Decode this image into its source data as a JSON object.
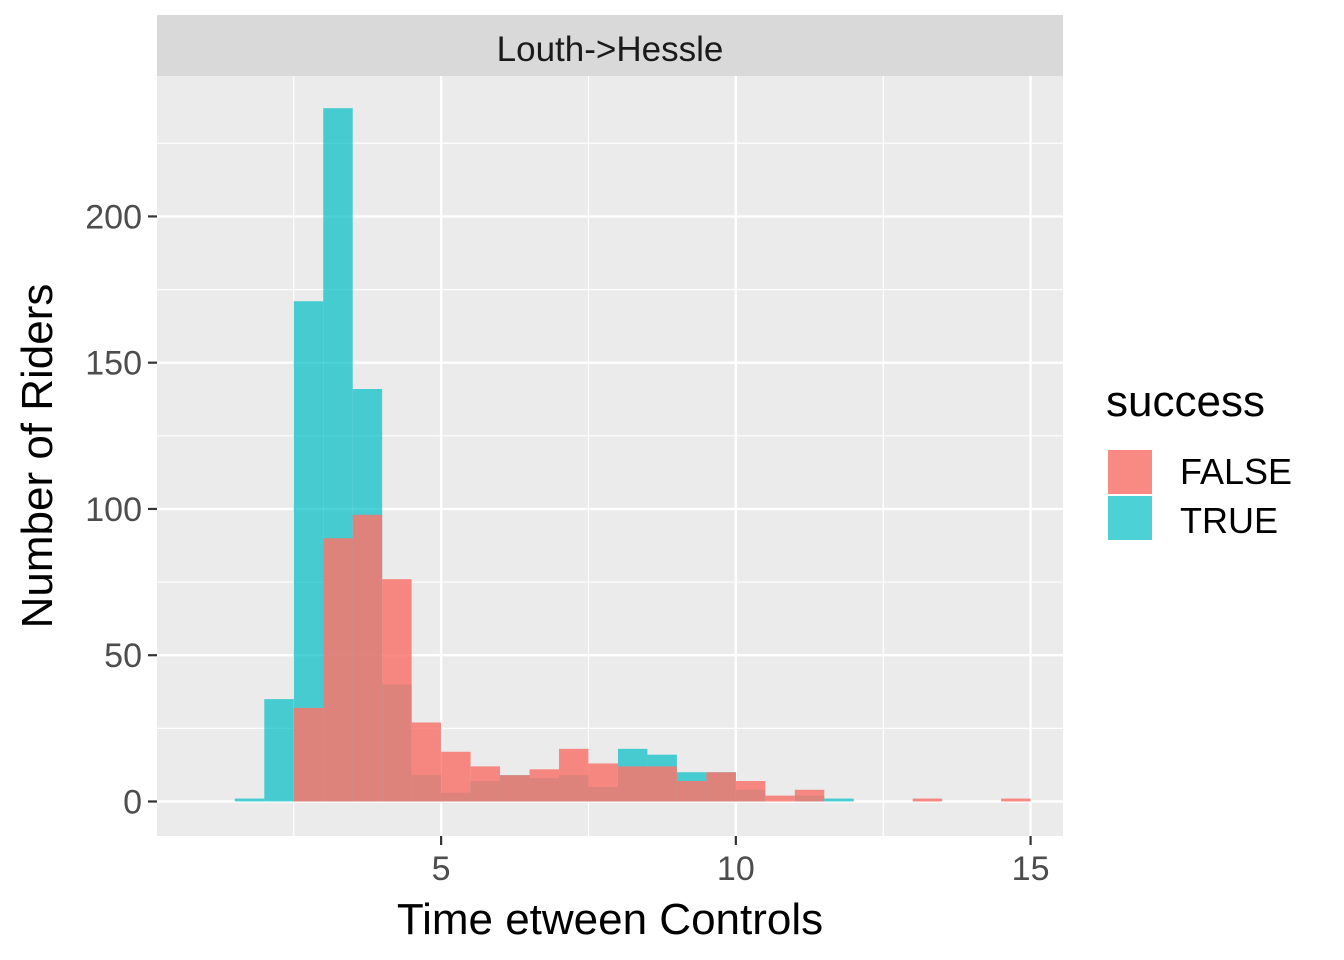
{
  "chart_data": {
    "type": "histogram",
    "facet": "Louth->Hessle",
    "xlabel": "Time etween Controls",
    "ylabel": "Number of Riders",
    "xlim": [
      0.18,
      15.55
    ],
    "ylim": [
      -11.8,
      248
    ],
    "x_ticks": [
      5,
      10,
      15
    ],
    "y_ticks": [
      0,
      50,
      100,
      150,
      200
    ],
    "grid": true,
    "legend": {
      "title": "success",
      "position": "right"
    },
    "bin_width": 0.5,
    "series": [
      {
        "name": "FALSE",
        "color": "#F8766D",
        "bins": [
          {
            "x0": 2.5,
            "x1": 3.0,
            "value": 32
          },
          {
            "x0": 3.0,
            "x1": 3.5,
            "value": 90
          },
          {
            "x0": 3.5,
            "x1": 4.0,
            "value": 98
          },
          {
            "x0": 4.0,
            "x1": 4.5,
            "value": 76
          },
          {
            "x0": 4.5,
            "x1": 5.0,
            "value": 27
          },
          {
            "x0": 5.0,
            "x1": 5.5,
            "value": 17
          },
          {
            "x0": 5.5,
            "x1": 6.0,
            "value": 12
          },
          {
            "x0": 6.0,
            "x1": 6.5,
            "value": 9
          },
          {
            "x0": 6.5,
            "x1": 7.0,
            "value": 11
          },
          {
            "x0": 7.0,
            "x1": 7.5,
            "value": 18
          },
          {
            "x0": 7.5,
            "x1": 8.0,
            "value": 13
          },
          {
            "x0": 8.0,
            "x1": 8.5,
            "value": 12
          },
          {
            "x0": 8.5,
            "x1": 9.0,
            "value": 12
          },
          {
            "x0": 9.0,
            "x1": 9.5,
            "value": 7
          },
          {
            "x0": 9.5,
            "x1": 10.0,
            "value": 10
          },
          {
            "x0": 10.0,
            "x1": 10.5,
            "value": 7
          },
          {
            "x0": 10.5,
            "x1": 11.0,
            "value": 2
          },
          {
            "x0": 11.0,
            "x1": 11.5,
            "value": 4
          },
          {
            "x0": 13.0,
            "x1": 13.5,
            "value": 1
          },
          {
            "x0": 14.5,
            "x1": 15.0,
            "value": 1
          }
        ]
      },
      {
        "name": "TRUE",
        "color": "#00BFC4",
        "bins": [
          {
            "x0": 1.5,
            "x1": 2.0,
            "value": 1
          },
          {
            "x0": 2.0,
            "x1": 2.5,
            "value": 35
          },
          {
            "x0": 2.5,
            "x1": 3.0,
            "value": 171
          },
          {
            "x0": 3.0,
            "x1": 3.5,
            "value": 237
          },
          {
            "x0": 3.5,
            "x1": 4.0,
            "value": 141
          },
          {
            "x0": 4.0,
            "x1": 4.5,
            "value": 40
          },
          {
            "x0": 4.5,
            "x1": 5.0,
            "value": 9
          },
          {
            "x0": 5.0,
            "x1": 5.5,
            "value": 3
          },
          {
            "x0": 5.5,
            "x1": 6.0,
            "value": 7
          },
          {
            "x0": 6.0,
            "x1": 6.5,
            "value": 9
          },
          {
            "x0": 6.5,
            "x1": 7.0,
            "value": 8
          },
          {
            "x0": 7.0,
            "x1": 7.5,
            "value": 9
          },
          {
            "x0": 7.5,
            "x1": 8.0,
            "value": 5
          },
          {
            "x0": 8.0,
            "x1": 8.5,
            "value": 18
          },
          {
            "x0": 8.5,
            "x1": 9.0,
            "value": 16
          },
          {
            "x0": 9.0,
            "x1": 9.5,
            "value": 10
          },
          {
            "x0": 9.5,
            "x1": 10.0,
            "value": 10
          },
          {
            "x0": 10.0,
            "x1": 10.5,
            "value": 4
          },
          {
            "x0": 10.5,
            "x1": 11.0,
            "value": 0
          },
          {
            "x0": 11.0,
            "x1": 11.5,
            "value": 2
          },
          {
            "x0": 11.5,
            "x1": 12.0,
            "value": 1
          }
        ]
      }
    ]
  }
}
